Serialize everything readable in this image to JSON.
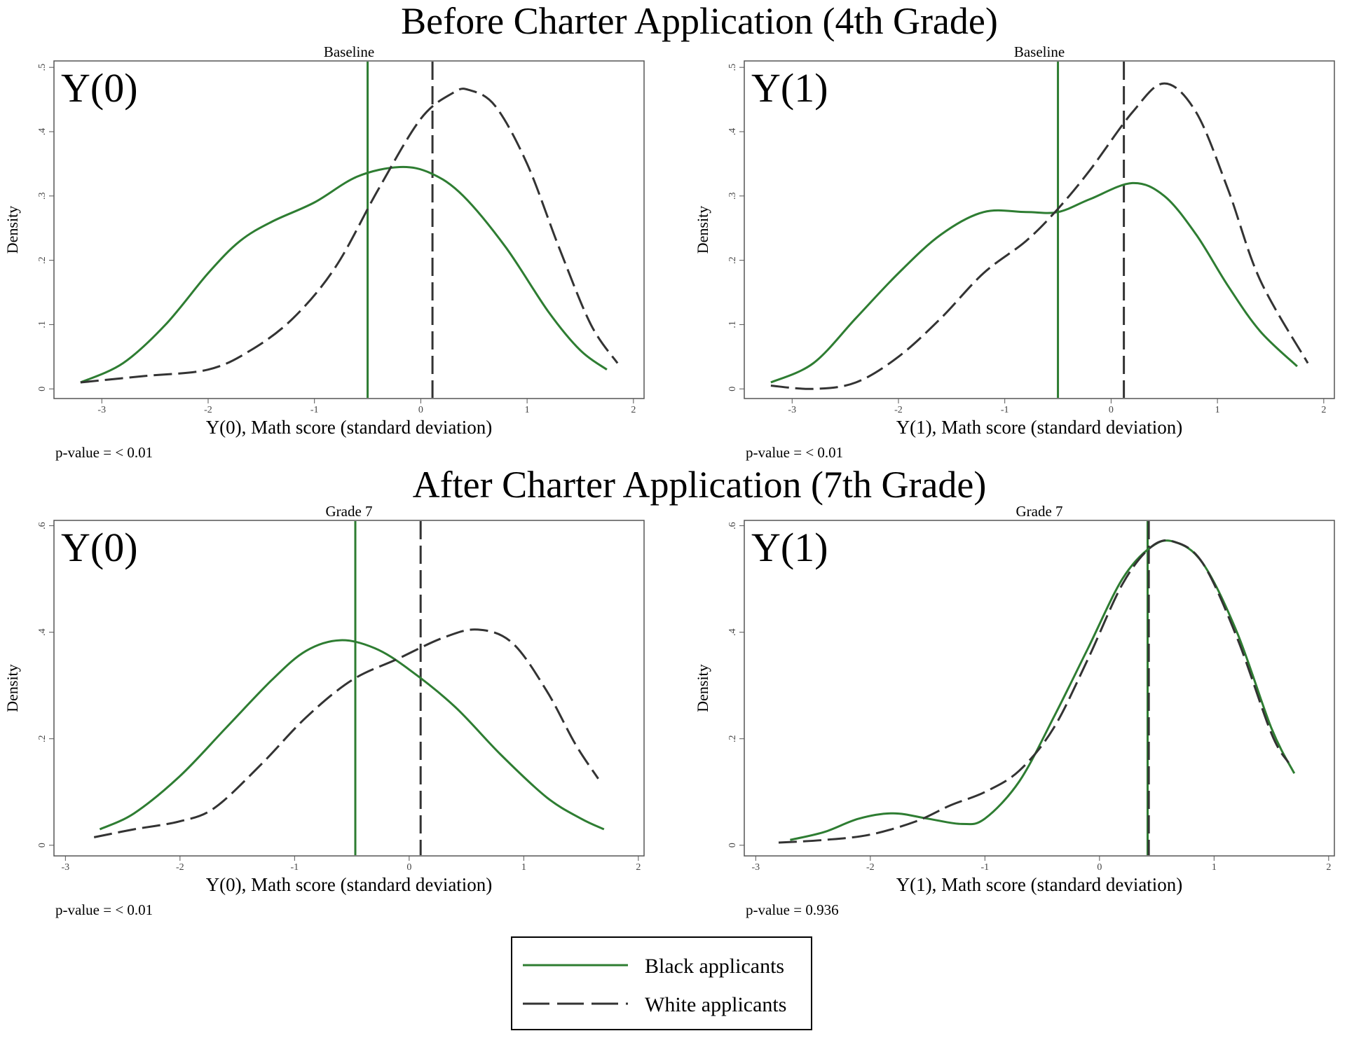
{
  "sections": [
    {
      "title": "Before Charter Application (4th Grade)"
    },
    {
      "title": "After Charter Application (7th Grade)"
    }
  ],
  "legend": [
    {
      "name": "Black applicants",
      "style": "solid",
      "color": "#2e7d32"
    },
    {
      "name": "White applicants",
      "style": "dashed",
      "color": "#333333"
    }
  ],
  "colors": {
    "black_applicants": "#2e7d32",
    "white_applicants": "#333333"
  },
  "chart_data": [
    {
      "type": "line",
      "panel_tag": "Y(0)",
      "subtitle": "Baseline",
      "xlabel": "Y(0), Math score (standard deviation)",
      "ylabel": "Density",
      "pvalue": "p-value = < 0.01",
      "xlim": [
        -3.45,
        2.1
      ],
      "ylim": [
        -0.015,
        0.51
      ],
      "xticks": [
        "-3",
        "-2",
        "-1",
        "0",
        "1",
        "2"
      ],
      "yticks": [
        "0",
        ".1",
        ".2",
        ".3",
        ".4",
        ".5"
      ],
      "reference_lines": [
        {
          "series": "Black applicants",
          "x": -0.5
        },
        {
          "series": "White applicants",
          "x": 0.11
        }
      ],
      "series": [
        {
          "name": "Black applicants",
          "x": [
            -3.2,
            -2.8,
            -2.4,
            -2.0,
            -1.7,
            -1.4,
            -1.0,
            -0.6,
            -0.2,
            0.1,
            0.4,
            0.8,
            1.2,
            1.5,
            1.75
          ],
          "y": [
            0.01,
            0.04,
            0.1,
            0.18,
            0.23,
            0.26,
            0.29,
            0.33,
            0.345,
            0.335,
            0.3,
            0.22,
            0.12,
            0.06,
            0.03
          ]
        },
        {
          "name": "White applicants",
          "x": [
            -3.2,
            -2.6,
            -2.0,
            -1.6,
            -1.2,
            -0.8,
            -0.4,
            0.0,
            0.3,
            0.45,
            0.7,
            1.0,
            1.3,
            1.6,
            1.85
          ],
          "y": [
            0.01,
            0.02,
            0.03,
            0.06,
            0.11,
            0.19,
            0.31,
            0.42,
            0.46,
            0.465,
            0.44,
            0.35,
            0.22,
            0.1,
            0.04
          ]
        }
      ]
    },
    {
      "type": "line",
      "panel_tag": "Y(1)",
      "subtitle": "Baseline",
      "xlabel": "Y(1), Math score (standard deviation)",
      "ylabel": "Density",
      "pvalue": "p-value = < 0.01",
      "xlim": [
        -3.45,
        2.1
      ],
      "ylim": [
        -0.015,
        0.51
      ],
      "xticks": [
        "-3",
        "-2",
        "-1",
        "0",
        "1",
        "2"
      ],
      "yticks": [
        "0",
        ".1",
        ".2",
        ".3",
        ".4",
        ".5"
      ],
      "reference_lines": [
        {
          "series": "Black applicants",
          "x": -0.5
        },
        {
          "series": "White applicants",
          "x": 0.12
        }
      ],
      "series": [
        {
          "name": "Black applicants",
          "x": [
            -3.2,
            -2.8,
            -2.4,
            -2.0,
            -1.6,
            -1.2,
            -0.8,
            -0.5,
            -0.2,
            0.2,
            0.5,
            0.8,
            1.1,
            1.4,
            1.75
          ],
          "y": [
            0.01,
            0.04,
            0.11,
            0.18,
            0.24,
            0.275,
            0.275,
            0.275,
            0.295,
            0.32,
            0.3,
            0.24,
            0.16,
            0.09,
            0.035
          ]
        },
        {
          "name": "White applicants",
          "x": [
            -3.2,
            -2.8,
            -2.4,
            -2.0,
            -1.6,
            -1.2,
            -0.8,
            -0.5,
            -0.2,
            0.2,
            0.5,
            0.8,
            1.1,
            1.4,
            1.85
          ],
          "y": [
            0.005,
            0.0,
            0.01,
            0.05,
            0.11,
            0.18,
            0.23,
            0.28,
            0.34,
            0.43,
            0.475,
            0.43,
            0.31,
            0.17,
            0.04
          ]
        }
      ]
    },
    {
      "type": "line",
      "panel_tag": "Y(0)",
      "subtitle": "Grade 7",
      "xlabel": "Y(0), Math score (standard deviation)",
      "ylabel": "Density",
      "pvalue": "p-value = < 0.01",
      "xlim": [
        -3.1,
        2.05
      ],
      "ylim": [
        -0.02,
        0.61
      ],
      "xticks": [
        "-3",
        "-2",
        "-1",
        "0",
        "1",
        "2"
      ],
      "yticks": [
        "0",
        ".2",
        ".4",
        ".6"
      ],
      "reference_lines": [
        {
          "series": "Black applicants",
          "x": -0.47
        },
        {
          "series": "White applicants",
          "x": 0.1
        }
      ],
      "series": [
        {
          "name": "Black applicants",
          "x": [
            -2.7,
            -2.4,
            -2.0,
            -1.6,
            -1.2,
            -0.9,
            -0.6,
            -0.3,
            0.0,
            0.4,
            0.8,
            1.2,
            1.5,
            1.7
          ],
          "y": [
            0.03,
            0.06,
            0.13,
            0.22,
            0.31,
            0.365,
            0.385,
            0.37,
            0.33,
            0.26,
            0.17,
            0.09,
            0.05,
            0.03
          ]
        },
        {
          "name": "White applicants",
          "x": [
            -2.75,
            -2.4,
            -2.0,
            -1.7,
            -1.3,
            -0.9,
            -0.5,
            -0.1,
            0.3,
            0.6,
            0.9,
            1.2,
            1.45,
            1.65
          ],
          "y": [
            0.015,
            0.03,
            0.045,
            0.07,
            0.15,
            0.24,
            0.31,
            0.35,
            0.39,
            0.405,
            0.38,
            0.29,
            0.19,
            0.125
          ]
        }
      ]
    },
    {
      "type": "line",
      "panel_tag": "Y(1)",
      "subtitle": "Grade 7",
      "xlabel": "Y(1), Math score (standard deviation)",
      "ylabel": "Density",
      "pvalue": "p-value = 0.936",
      "xlim": [
        -3.1,
        2.05
      ],
      "ylim": [
        -0.02,
        0.61
      ],
      "xticks": [
        "-3",
        "-2",
        "-1",
        "0",
        "1",
        "2"
      ],
      "yticks": [
        "0",
        ".2",
        ".4",
        ".6"
      ],
      "reference_lines": [
        {
          "series": "Black applicants",
          "x": 0.42
        },
        {
          "series": "White applicants",
          "x": 0.43
        }
      ],
      "series": [
        {
          "name": "Black applicants",
          "x": [
            -2.7,
            -2.4,
            -2.1,
            -1.8,
            -1.5,
            -1.2,
            -1.0,
            -0.7,
            -0.4,
            -0.1,
            0.2,
            0.45,
            0.65,
            0.9,
            1.2,
            1.5,
            1.7
          ],
          "y": [
            0.01,
            0.025,
            0.05,
            0.06,
            0.05,
            0.04,
            0.05,
            0.12,
            0.24,
            0.37,
            0.5,
            0.56,
            0.57,
            0.53,
            0.4,
            0.22,
            0.135
          ]
        },
        {
          "name": "White applicants",
          "x": [
            -2.8,
            -2.4,
            -2.0,
            -1.6,
            -1.3,
            -1.0,
            -0.7,
            -0.4,
            -0.1,
            0.2,
            0.45,
            0.65,
            0.9,
            1.2,
            1.5,
            1.65
          ],
          "y": [
            0.005,
            0.01,
            0.02,
            0.045,
            0.075,
            0.1,
            0.14,
            0.22,
            0.35,
            0.49,
            0.56,
            0.57,
            0.53,
            0.39,
            0.21,
            0.155
          ]
        }
      ]
    }
  ]
}
